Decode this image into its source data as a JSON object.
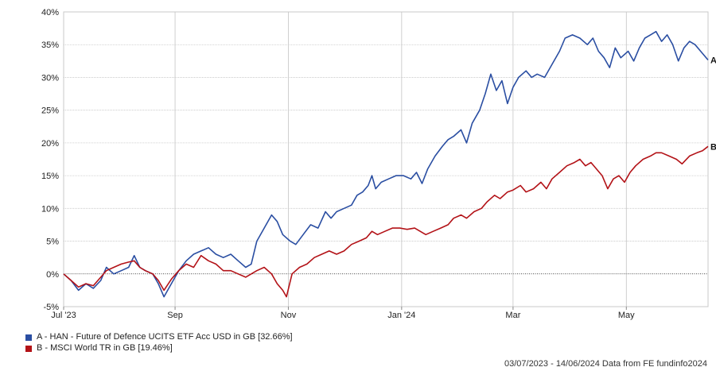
{
  "chart_data": {
    "type": "line",
    "title": "",
    "xlabel": "",
    "ylabel": "",
    "ylim": [
      -5,
      40
    ],
    "yticks": [
      "-5%",
      "0%",
      "5%",
      "10%",
      "15%",
      "20%",
      "25%",
      "30%",
      "35%",
      "40%"
    ],
    "ytick_values": [
      -5,
      0,
      5,
      10,
      15,
      20,
      25,
      30,
      35,
      40
    ],
    "xlim": [
      "2023-07-03",
      "2024-06-14"
    ],
    "xticks": [
      {
        "label": "Jul '23",
        "date": "2023-07-03"
      },
      {
        "label": "Sep",
        "date": "2023-09-01"
      },
      {
        "label": "Nov",
        "date": "2023-11-01"
      },
      {
        "label": "Jan '24",
        "date": "2024-01-01"
      },
      {
        "label": "Mar",
        "date": "2024-03-01"
      },
      {
        "label": "May",
        "date": "2024-05-01"
      }
    ],
    "grid": true,
    "zero_line": true,
    "series": [
      {
        "name": "A - HAN - Future of Defence UCITS ETF Acc USD in GB [32.66%]",
        "end_label": "A",
        "color": "#2a4ea2",
        "points": [
          [
            "2023-07-03",
            0
          ],
          [
            "2023-07-07",
            -1
          ],
          [
            "2023-07-11",
            -2.5
          ],
          [
            "2023-07-15",
            -1.5
          ],
          [
            "2023-07-19",
            -2.2
          ],
          [
            "2023-07-23",
            -1.0
          ],
          [
            "2023-07-26",
            1.0
          ],
          [
            "2023-07-30",
            0.0
          ],
          [
            "2023-08-03",
            0.5
          ],
          [
            "2023-08-07",
            1.0
          ],
          [
            "2023-08-10",
            2.8
          ],
          [
            "2023-08-13",
            1.0
          ],
          [
            "2023-08-16",
            0.5
          ],
          [
            "2023-08-20",
            0.0
          ],
          [
            "2023-08-23",
            -1.5
          ],
          [
            "2023-08-26",
            -3.5
          ],
          [
            "2023-08-30",
            -1.5
          ],
          [
            "2023-09-03",
            0.5
          ],
          [
            "2023-09-07",
            2.0
          ],
          [
            "2023-09-11",
            3.0
          ],
          [
            "2023-09-15",
            3.5
          ],
          [
            "2023-09-19",
            4.0
          ],
          [
            "2023-09-23",
            3.0
          ],
          [
            "2023-09-27",
            2.5
          ],
          [
            "2023-10-01",
            3.0
          ],
          [
            "2023-10-05",
            2.0
          ],
          [
            "2023-10-09",
            1.0
          ],
          [
            "2023-10-12",
            1.5
          ],
          [
            "2023-10-15",
            5.0
          ],
          [
            "2023-10-19",
            7.0
          ],
          [
            "2023-10-23",
            9.0
          ],
          [
            "2023-10-26",
            8.0
          ],
          [
            "2023-10-29",
            6.0
          ],
          [
            "2023-11-02",
            5.0
          ],
          [
            "2023-11-05",
            4.5
          ],
          [
            "2023-11-09",
            6.0
          ],
          [
            "2023-11-13",
            7.5
          ],
          [
            "2023-11-17",
            7.0
          ],
          [
            "2023-11-21",
            9.5
          ],
          [
            "2023-11-24",
            8.5
          ],
          [
            "2023-11-27",
            9.5
          ],
          [
            "2023-12-01",
            10.0
          ],
          [
            "2023-12-05",
            10.5
          ],
          [
            "2023-12-08",
            12.0
          ],
          [
            "2023-12-11",
            12.5
          ],
          [
            "2023-12-14",
            13.5
          ],
          [
            "2023-12-16",
            15.0
          ],
          [
            "2023-12-18",
            13.0
          ],
          [
            "2023-12-21",
            14.0
          ],
          [
            "2023-12-25",
            14.5
          ],
          [
            "2023-12-29",
            15.0
          ],
          [
            "2024-01-02",
            15.0
          ],
          [
            "2024-01-06",
            14.5
          ],
          [
            "2024-01-09",
            15.5
          ],
          [
            "2024-01-12",
            13.8
          ],
          [
            "2024-01-15",
            16.0
          ],
          [
            "2024-01-19",
            18.0
          ],
          [
            "2024-01-23",
            19.5
          ],
          [
            "2024-01-26",
            20.5
          ],
          [
            "2024-01-29",
            21.0
          ],
          [
            "2024-02-02",
            22.0
          ],
          [
            "2024-02-05",
            20.0
          ],
          [
            "2024-02-08",
            23.0
          ],
          [
            "2024-02-12",
            25.0
          ],
          [
            "2024-02-15",
            27.5
          ],
          [
            "2024-02-18",
            30.5
          ],
          [
            "2024-02-21",
            28.0
          ],
          [
            "2024-02-24",
            29.5
          ],
          [
            "2024-02-27",
            26.0
          ],
          [
            "2024-03-01",
            28.5
          ],
          [
            "2024-03-04",
            30.0
          ],
          [
            "2024-03-08",
            31.0
          ],
          [
            "2024-03-11",
            30.0
          ],
          [
            "2024-03-14",
            30.5
          ],
          [
            "2024-03-18",
            30.0
          ],
          [
            "2024-03-22",
            32.0
          ],
          [
            "2024-03-26",
            34.0
          ],
          [
            "2024-03-29",
            36.0
          ],
          [
            "2024-04-02",
            36.5
          ],
          [
            "2024-04-06",
            36.0
          ],
          [
            "2024-04-10",
            35.0
          ],
          [
            "2024-04-13",
            36.0
          ],
          [
            "2024-04-16",
            34.0
          ],
          [
            "2024-04-19",
            33.0
          ],
          [
            "2024-04-22",
            31.5
          ],
          [
            "2024-04-25",
            34.5
          ],
          [
            "2024-04-28",
            33.0
          ],
          [
            "2024-05-02",
            34.0
          ],
          [
            "2024-05-05",
            32.5
          ],
          [
            "2024-05-08",
            34.5
          ],
          [
            "2024-05-11",
            36.0
          ],
          [
            "2024-05-14",
            36.5
          ],
          [
            "2024-05-17",
            37.0
          ],
          [
            "2024-05-20",
            35.5
          ],
          [
            "2024-05-23",
            36.5
          ],
          [
            "2024-05-26",
            35.0
          ],
          [
            "2024-05-29",
            32.5
          ],
          [
            "2024-06-01",
            34.5
          ],
          [
            "2024-06-04",
            35.5
          ],
          [
            "2024-06-07",
            35.0
          ],
          [
            "2024-06-10",
            34.0
          ],
          [
            "2024-06-14",
            32.66
          ]
        ]
      },
      {
        "name": "B - MSCI World TR in GB [19.46%]",
        "end_label": "B",
        "color": "#b31217",
        "points": [
          [
            "2023-07-03",
            0
          ],
          [
            "2023-07-07",
            -1
          ],
          [
            "2023-07-11",
            -2.0
          ],
          [
            "2023-07-15",
            -1.5
          ],
          [
            "2023-07-19",
            -1.8
          ],
          [
            "2023-07-23",
            -0.5
          ],
          [
            "2023-07-26",
            0.5
          ],
          [
            "2023-07-30",
            1.0
          ],
          [
            "2023-08-03",
            1.5
          ],
          [
            "2023-08-07",
            1.8
          ],
          [
            "2023-08-10",
            2.0
          ],
          [
            "2023-08-13",
            1.0
          ],
          [
            "2023-08-16",
            0.5
          ],
          [
            "2023-08-20",
            0.0
          ],
          [
            "2023-08-23",
            -1.0
          ],
          [
            "2023-08-26",
            -2.5
          ],
          [
            "2023-08-30",
            -0.8
          ],
          [
            "2023-09-03",
            0.5
          ],
          [
            "2023-09-07",
            1.5
          ],
          [
            "2023-09-11",
            1.0
          ],
          [
            "2023-09-15",
            2.8
          ],
          [
            "2023-09-19",
            2.0
          ],
          [
            "2023-09-23",
            1.5
          ],
          [
            "2023-09-27",
            0.5
          ],
          [
            "2023-10-01",
            0.5
          ],
          [
            "2023-10-05",
            0.0
          ],
          [
            "2023-10-09",
            -0.5
          ],
          [
            "2023-10-12",
            0.0
          ],
          [
            "2023-10-15",
            0.5
          ],
          [
            "2023-10-19",
            1.0
          ],
          [
            "2023-10-23",
            0.0
          ],
          [
            "2023-10-26",
            -1.5
          ],
          [
            "2023-10-29",
            -2.5
          ],
          [
            "2023-10-31",
            -3.5
          ],
          [
            "2023-11-03",
            0.0
          ],
          [
            "2023-11-07",
            1.0
          ],
          [
            "2023-11-11",
            1.5
          ],
          [
            "2023-11-15",
            2.5
          ],
          [
            "2023-11-19",
            3.0
          ],
          [
            "2023-11-23",
            3.5
          ],
          [
            "2023-11-27",
            3.0
          ],
          [
            "2023-12-01",
            3.5
          ],
          [
            "2023-12-05",
            4.5
          ],
          [
            "2023-12-09",
            5.0
          ],
          [
            "2023-12-13",
            5.5
          ],
          [
            "2023-12-16",
            6.5
          ],
          [
            "2023-12-19",
            6.0
          ],
          [
            "2023-12-23",
            6.5
          ],
          [
            "2023-12-27",
            7.0
          ],
          [
            "2023-12-31",
            7.0
          ],
          [
            "2024-01-04",
            6.8
          ],
          [
            "2024-01-08",
            7.0
          ],
          [
            "2024-01-11",
            6.5
          ],
          [
            "2024-01-14",
            6.0
          ],
          [
            "2024-01-18",
            6.5
          ],
          [
            "2024-01-22",
            7.0
          ],
          [
            "2024-01-26",
            7.5
          ],
          [
            "2024-01-29",
            8.5
          ],
          [
            "2024-02-02",
            9.0
          ],
          [
            "2024-02-05",
            8.5
          ],
          [
            "2024-02-09",
            9.5
          ],
          [
            "2024-02-13",
            10.0
          ],
          [
            "2024-02-16",
            11.0
          ],
          [
            "2024-02-20",
            12.0
          ],
          [
            "2024-02-23",
            11.5
          ],
          [
            "2024-02-27",
            12.5
          ],
          [
            "2024-03-01",
            12.8
          ],
          [
            "2024-03-05",
            13.5
          ],
          [
            "2024-03-08",
            12.5
          ],
          [
            "2024-03-12",
            13.0
          ],
          [
            "2024-03-16",
            14.0
          ],
          [
            "2024-03-19",
            13.0
          ],
          [
            "2024-03-22",
            14.5
          ],
          [
            "2024-03-26",
            15.5
          ],
          [
            "2024-03-30",
            16.5
          ],
          [
            "2024-04-03",
            17.0
          ],
          [
            "2024-04-06",
            17.5
          ],
          [
            "2024-04-09",
            16.5
          ],
          [
            "2024-04-12",
            17.0
          ],
          [
            "2024-04-15",
            16.0
          ],
          [
            "2024-04-18",
            15.0
          ],
          [
            "2024-04-21",
            13.0
          ],
          [
            "2024-04-24",
            14.5
          ],
          [
            "2024-04-27",
            15.0
          ],
          [
            "2024-04-30",
            14.0
          ],
          [
            "2024-05-03",
            15.5
          ],
          [
            "2024-05-06",
            16.5
          ],
          [
            "2024-05-10",
            17.5
          ],
          [
            "2024-05-14",
            18.0
          ],
          [
            "2024-05-17",
            18.5
          ],
          [
            "2024-05-20",
            18.5
          ],
          [
            "2024-05-24",
            18.0
          ],
          [
            "2024-05-28",
            17.5
          ],
          [
            "2024-05-31",
            16.8
          ],
          [
            "2024-06-04",
            18.0
          ],
          [
            "2024-06-08",
            18.5
          ],
          [
            "2024-06-11",
            18.8
          ],
          [
            "2024-06-14",
            19.46
          ]
        ]
      }
    ]
  },
  "footer": {
    "text": "03/07/2023 - 14/06/2024 Data from FE fundinfo2024"
  }
}
